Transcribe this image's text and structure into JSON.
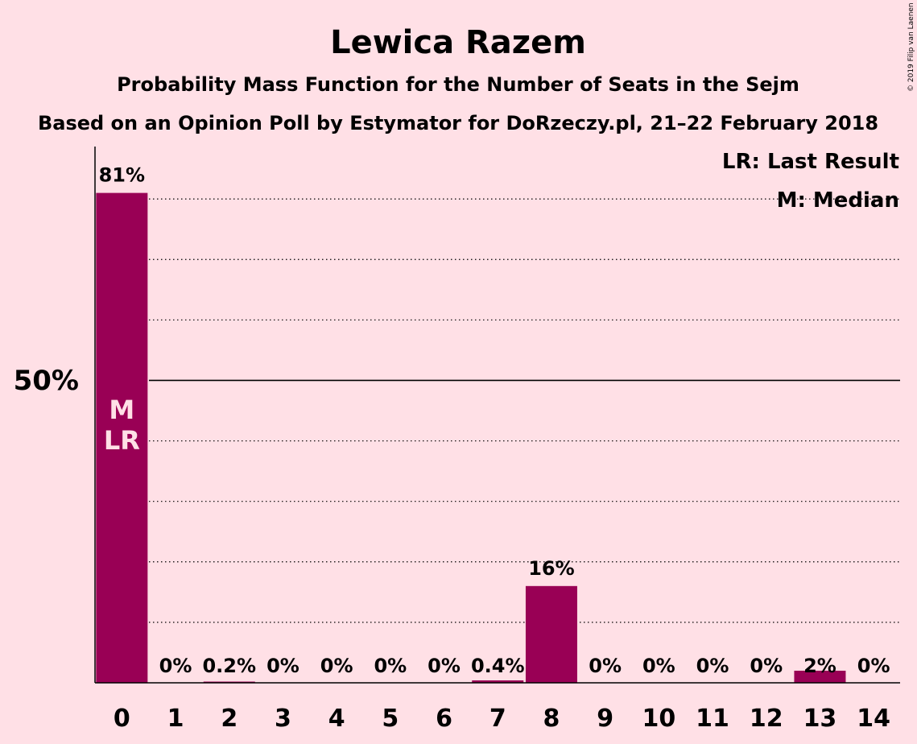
{
  "chart_data": {
    "type": "bar",
    "title": "Lewica Razem",
    "subtitle1": "Probability Mass Function for the Number of Seats in the Sejm",
    "subtitle2": "Based on an Opinion Poll by Estymator for DoRzeczy.pl, 21–22 February 2018",
    "categories": [
      "0",
      "1",
      "2",
      "3",
      "4",
      "5",
      "6",
      "7",
      "8",
      "9",
      "10",
      "11",
      "12",
      "13",
      "14"
    ],
    "values": [
      81,
      0,
      0.2,
      0,
      0,
      0,
      0,
      0.4,
      16,
      0,
      0,
      0,
      0,
      2,
      0
    ],
    "value_labels": [
      "81%",
      "0%",
      "0.2%",
      "0%",
      "0%",
      "0%",
      "0%",
      "0.4%",
      "16%",
      "0%",
      "0%",
      "0%",
      "0%",
      "2%",
      "0%"
    ],
    "ylim": [
      0,
      90
    ],
    "gridlines": [
      10,
      20,
      30,
      40,
      60,
      70,
      80
    ],
    "reference_line": 50,
    "y_tick_label": "50%",
    "in_bar_labels": {
      "category": "0",
      "lines": [
        "M",
        "LR"
      ]
    },
    "legend": [
      "LR: Last Result",
      "M: Median"
    ],
    "legend_position": "top-right",
    "bar_color": "#990055",
    "background_color": "#ffe0e6"
  },
  "copyright": "© 2019 Filip van Laenen"
}
